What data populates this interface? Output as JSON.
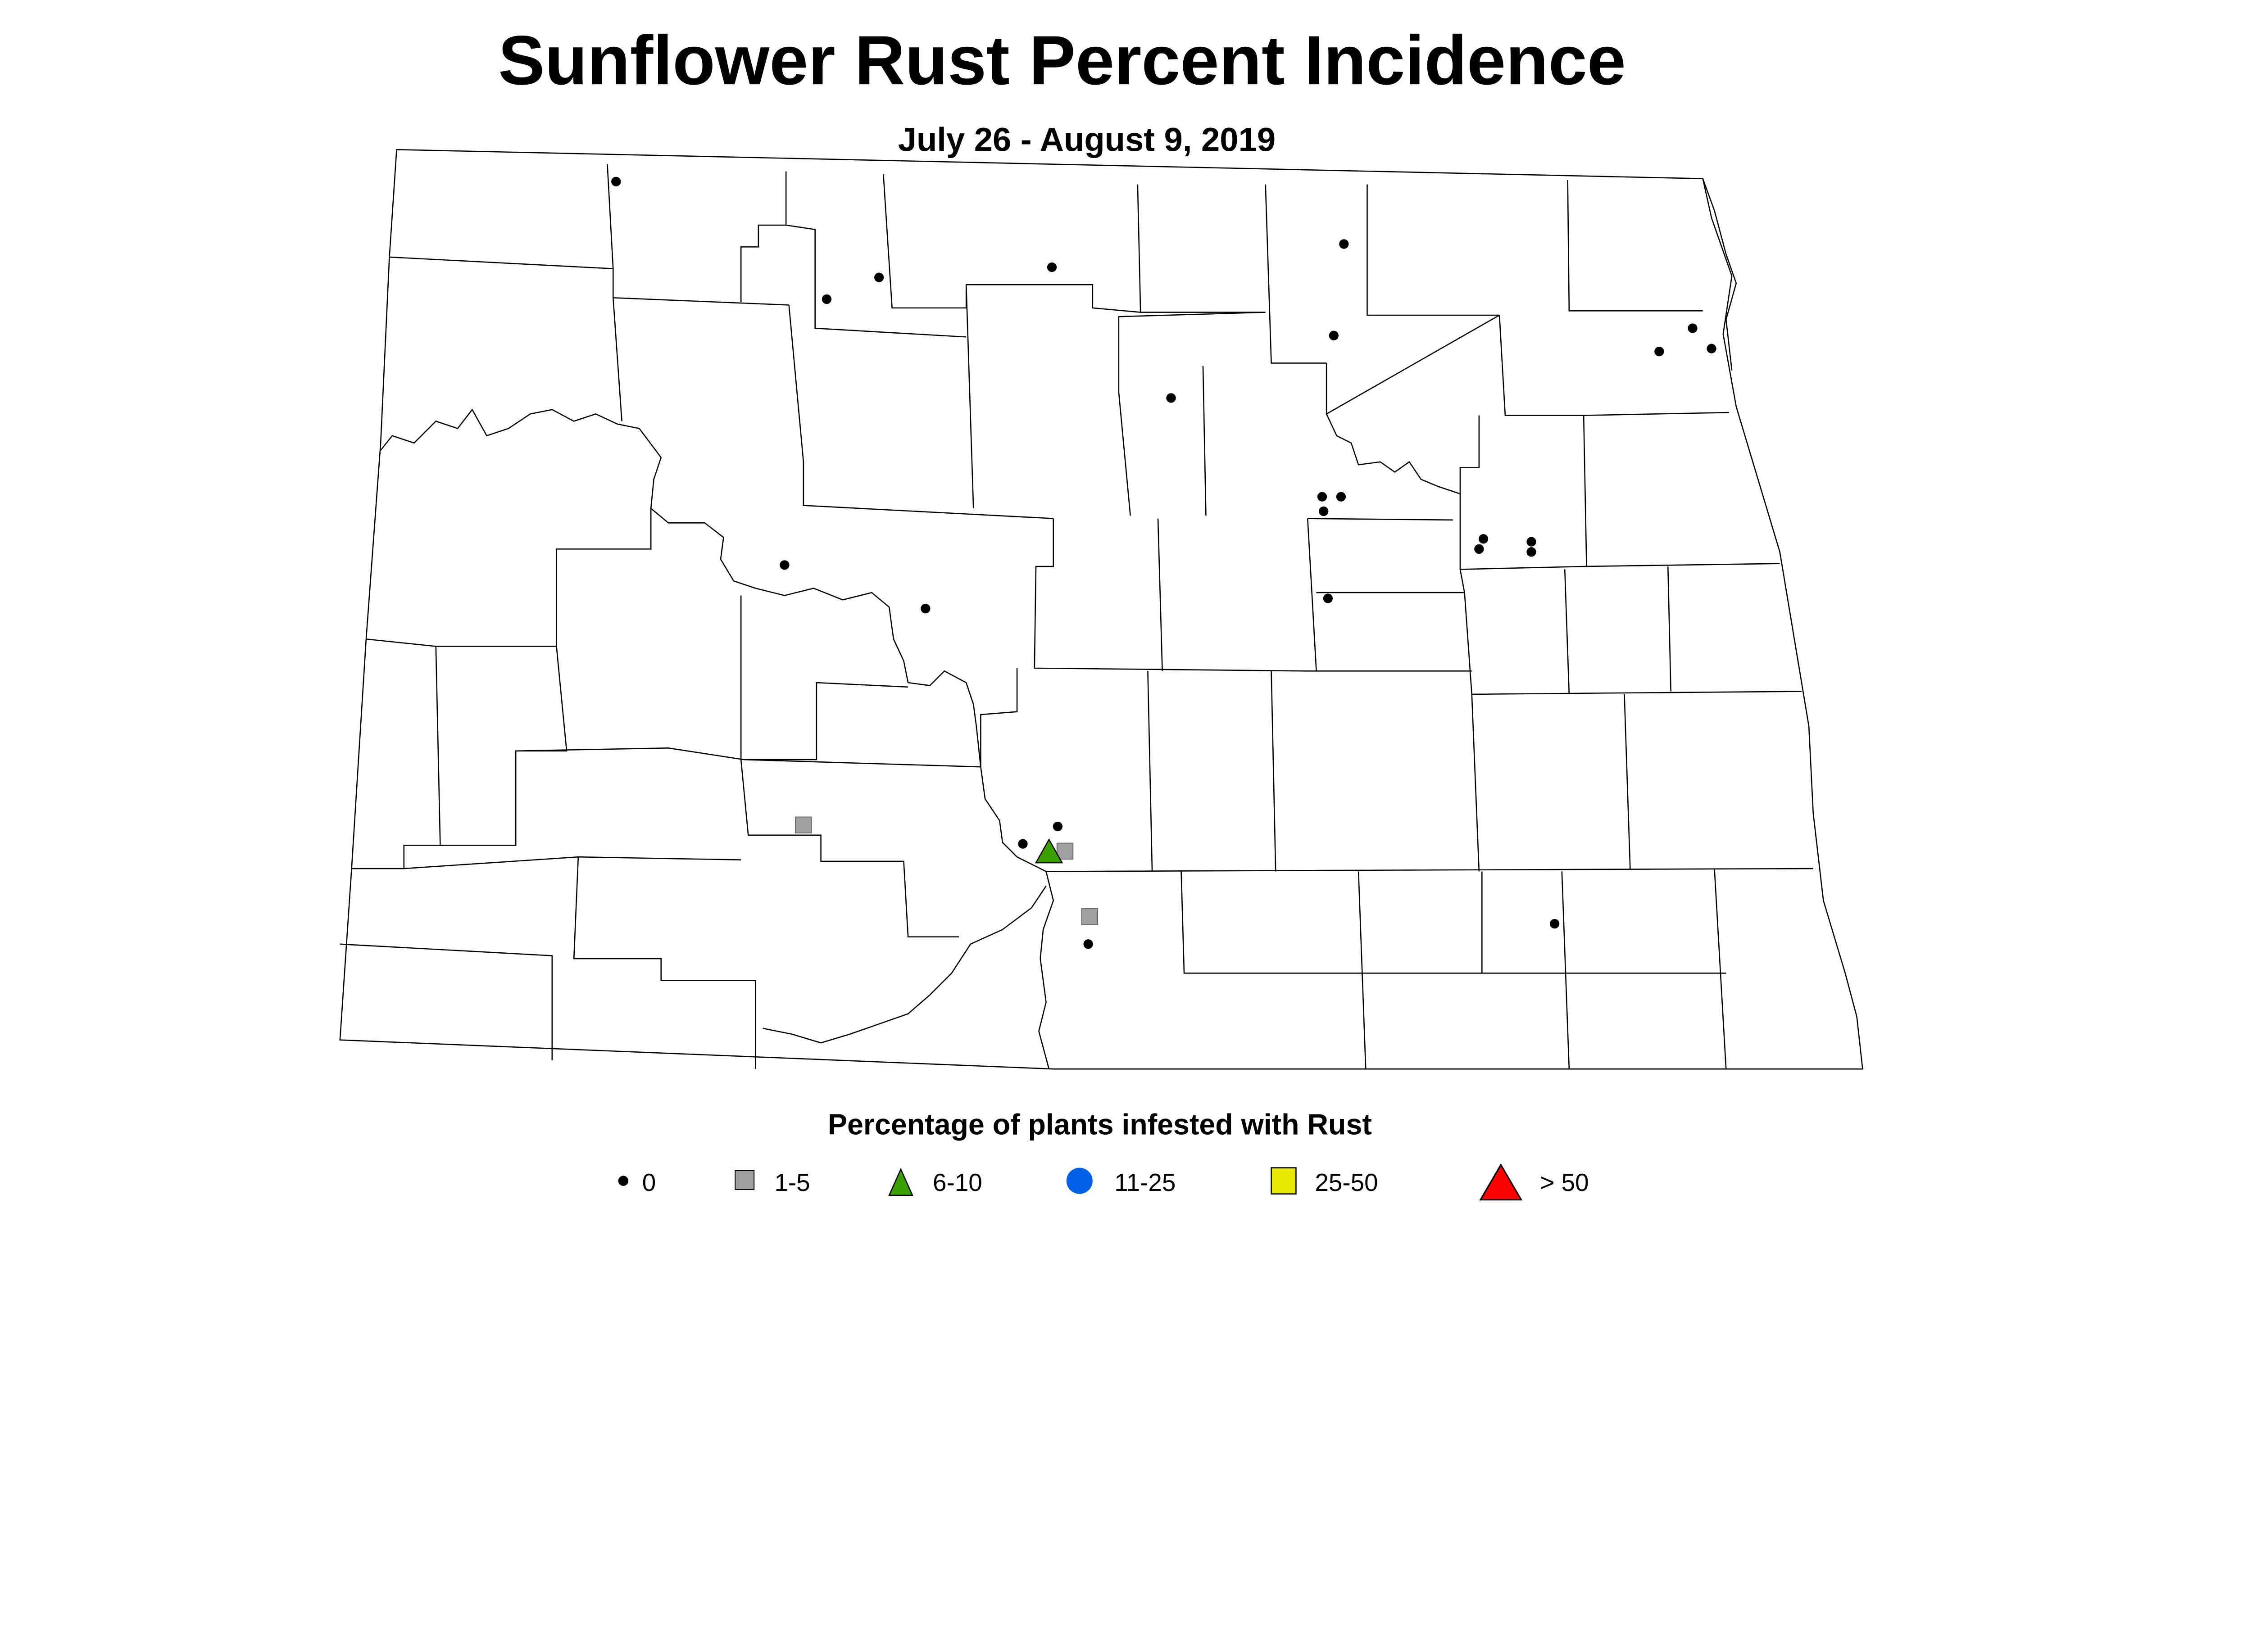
{
  "title": "Sunflower Rust Percent Incidence",
  "subtitle": "July 26 - August 9, 2019",
  "legend": {
    "title": "Percentage of plants infested with Rust",
    "items": [
      {
        "label": "0",
        "shape": "dot",
        "color": "#000000"
      },
      {
        "label": "1-5",
        "shape": "square",
        "color": "#a0a0a0"
      },
      {
        "label": "6-10",
        "shape": "triangle",
        "color": "#3aa000"
      },
      {
        "label": "11-25",
        "shape": "circle",
        "color": "#0060e8"
      },
      {
        "label": "25-50",
        "shape": "square",
        "color": "#e8e800"
      },
      {
        "label": "> 50",
        "shape": "triangle",
        "color": "#ff0000"
      }
    ]
  }
}
